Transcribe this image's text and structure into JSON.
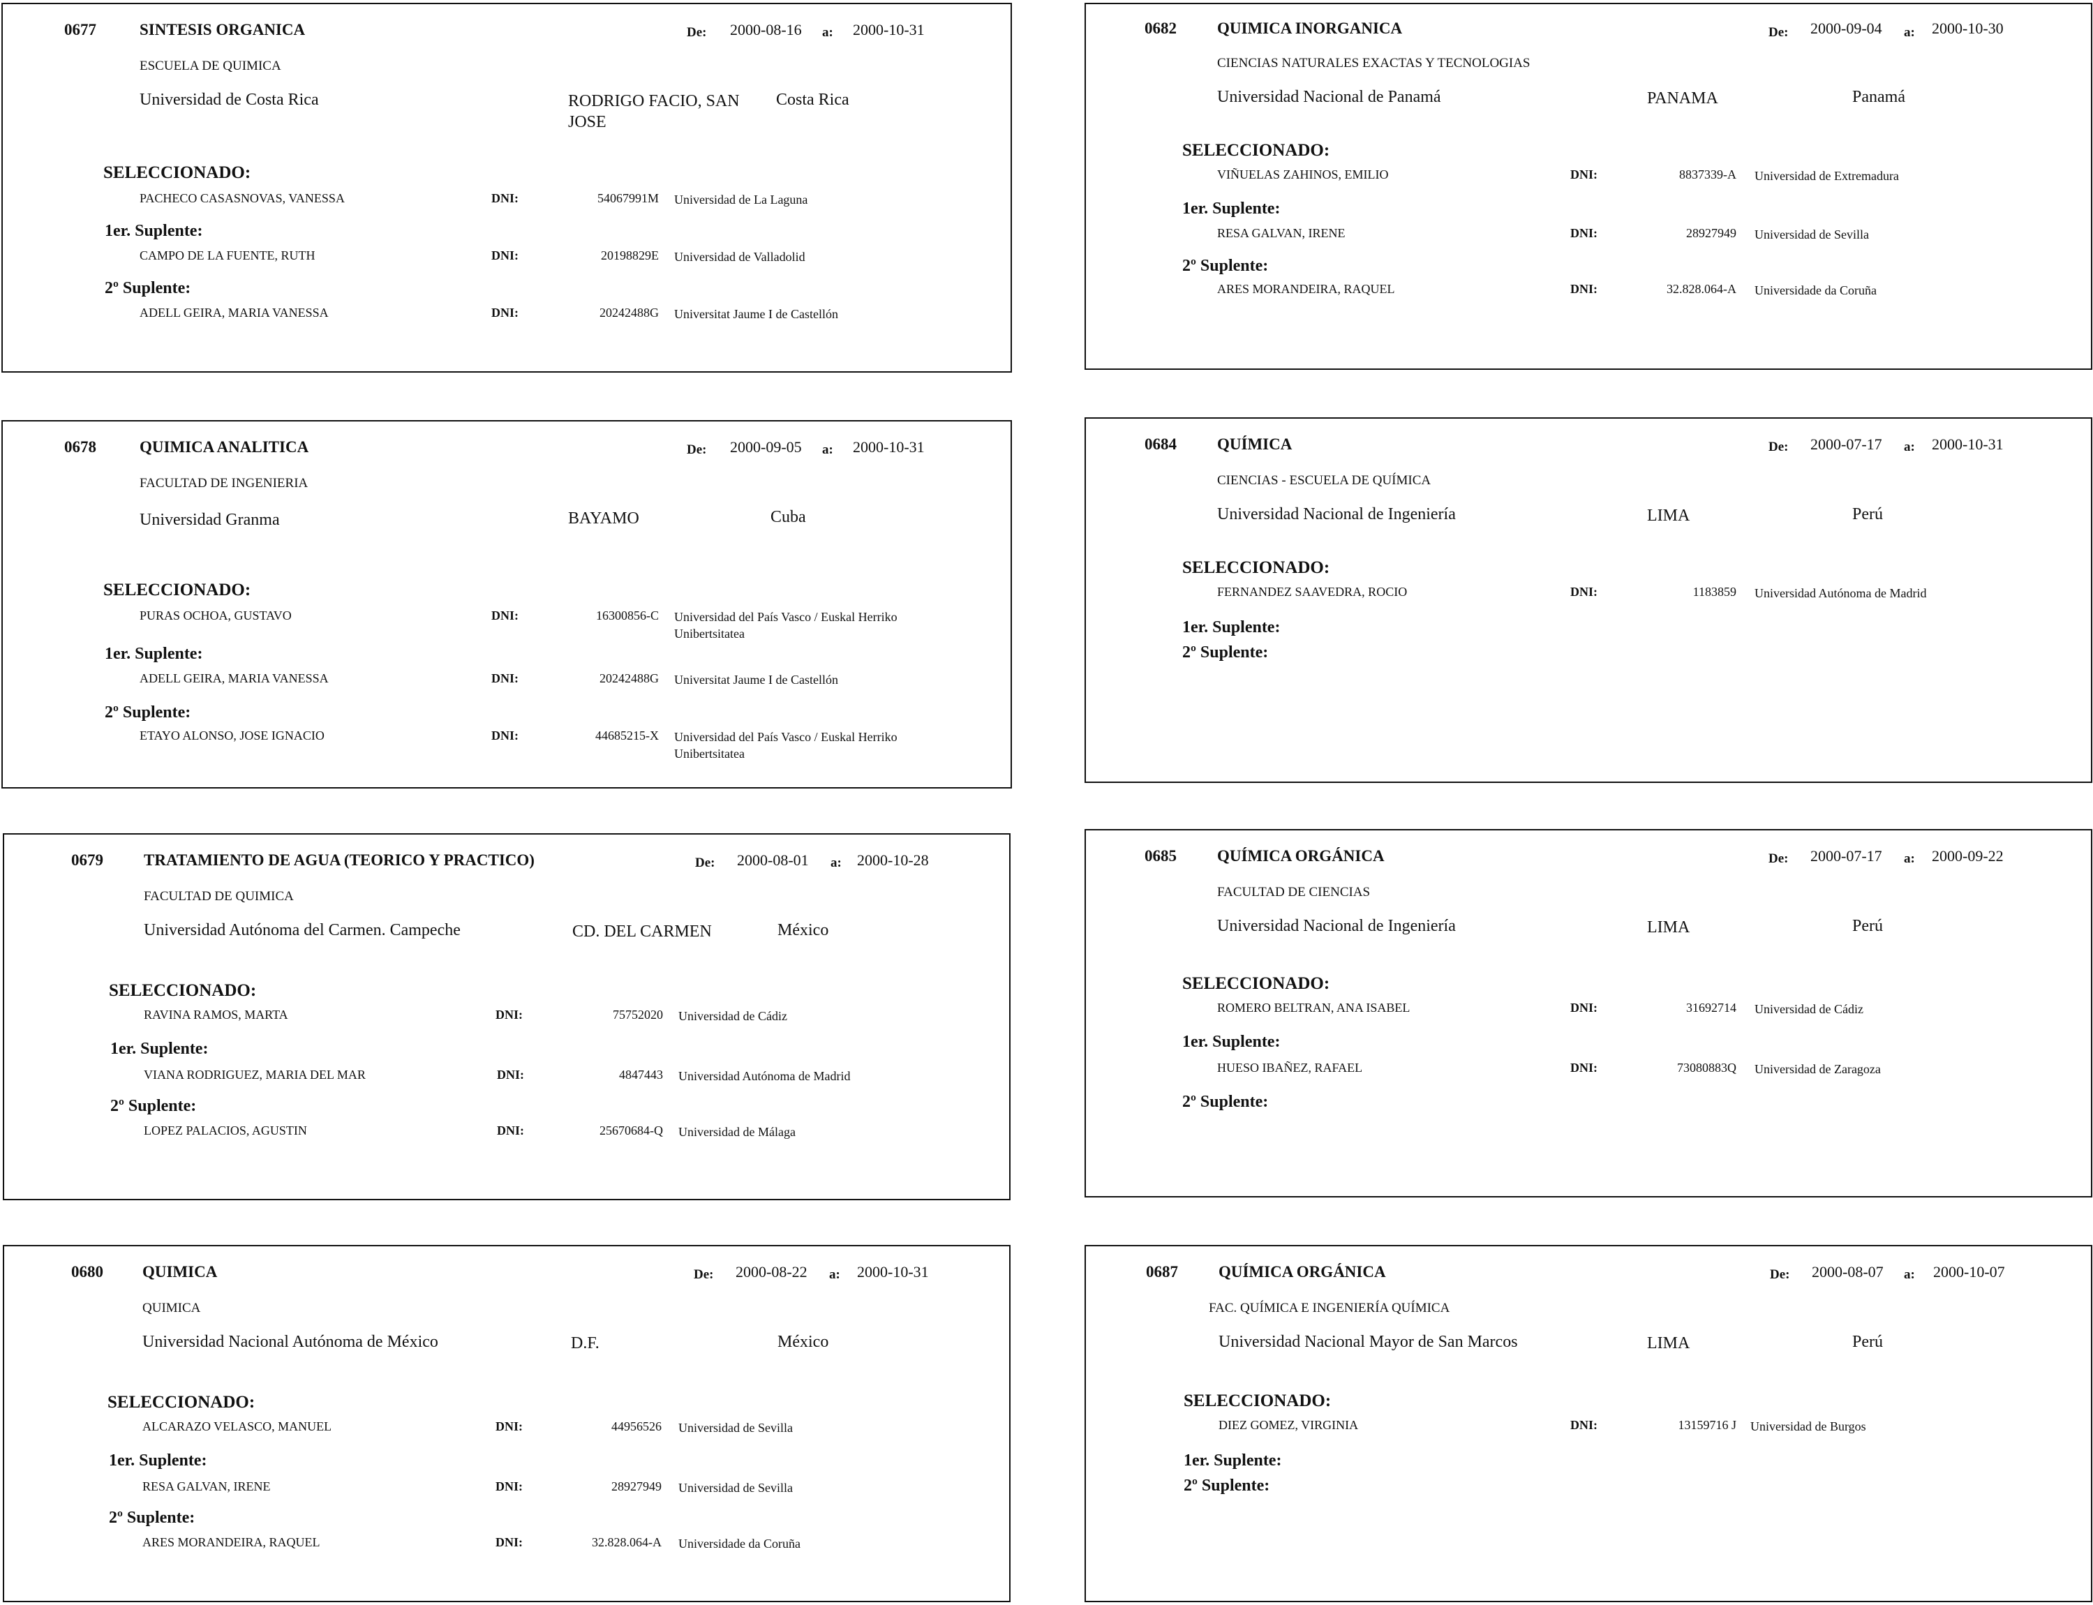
{
  "labels": {
    "de": "De:",
    "a": "a:",
    "selected": "SELECCIONADO:",
    "sub1": "1er. Suplente:",
    "sub2": "2º Suplente:",
    "dni": "DNI:"
  },
  "cards": [
    {
      "code": "0677",
      "title": "SINTESIS ORGANICA",
      "from": "2000-08-16",
      "to": "2000-10-31",
      "faculty": "ESCUELA DE QUIMICA",
      "university": "Universidad de Costa Rica",
      "city": "RODRIGO FACIO, SAN",
      "city2": "JOSE",
      "country": "Costa Rica",
      "selected": {
        "name": "PACHECO CASASNOVAS, VANESSA",
        "dni": "54067991M",
        "university": "Universidad de La Laguna"
      },
      "sub1": {
        "name": "CAMPO DE LA FUENTE, RUTH",
        "dni": "20198829E",
        "university": "Universidad de Valladolid"
      },
      "sub2": {
        "name": "ADELL GEIRA, MARIA VANESSA",
        "dni": "20242488G",
        "university": "Universitat Jaume I de Castellón"
      }
    },
    {
      "code": "0682",
      "title": "QUIMICA INORGANICA",
      "from": "2000-09-04",
      "to": "2000-10-30",
      "faculty": "CIENCIAS NATURALES EXACTAS Y TECNOLOGIAS",
      "university": "Universidad Nacional de Panamá",
      "city": "PANAMA",
      "country": "Panamá",
      "selected": {
        "name": "VIÑUELAS ZAHINOS, EMILIO",
        "dni": "8837339-A",
        "university": "Universidad de Extremadura"
      },
      "sub1": {
        "name": "RESA GALVAN, IRENE",
        "dni": "28927949",
        "university": "Universidad de Sevilla"
      },
      "sub2": {
        "name": "ARES MORANDEIRA, RAQUEL",
        "dni": "32.828.064-A",
        "university": "Universidade da Coruña"
      }
    },
    {
      "code": "0678",
      "title": "QUIMICA ANALITICA",
      "from": "2000-09-05",
      "to": "2000-10-31",
      "faculty": "FACULTAD DE INGENIERIA",
      "university": "Universidad Granma",
      "city": "BAYAMO",
      "country": "Cuba",
      "selected": {
        "name": "PURAS OCHOA, GUSTAVO",
        "dni": "16300856-C",
        "university": "Universidad del País Vasco / Euskal Herriko",
        "university2": "Unibertsitatea"
      },
      "sub1": {
        "name": "ADELL GEIRA, MARIA VANESSA",
        "dni": "20242488G",
        "university": "Universitat Jaume I de Castellón"
      },
      "sub2": {
        "name": "ETAYO ALONSO, JOSE IGNACIO",
        "dni": "44685215-X",
        "university": "Universidad del País Vasco / Euskal Herriko",
        "university2": "Unibertsitatea"
      }
    },
    {
      "code": "0684",
      "title": "QUÍMICA",
      "from": "2000-07-17",
      "to": "2000-10-31",
      "faculty": "CIENCIAS - ESCUELA DE QUÍMICA",
      "university": "Universidad Nacional de Ingeniería",
      "city": "LIMA",
      "country": "Perú",
      "selected": {
        "name": "FERNANDEZ  SAAVEDRA, ROCIO",
        "dni": "1183859",
        "university": "Universidad Autónoma de Madrid"
      }
    },
    {
      "code": "0679",
      "title": "TRATAMIENTO DE AGUA (TEORICO Y PRACTICO)",
      "from": "2000-08-01",
      "to": "2000-10-28",
      "faculty": "FACULTAD DE QUIMICA",
      "university": "Universidad Autónoma del Carmen. Campeche",
      "city": "CD. DEL CARMEN",
      "country": "México",
      "selected": {
        "name": "RAVINA RAMOS, MARTA",
        "dni": "75752020",
        "university": "Universidad de Cádiz"
      },
      "sub1": {
        "name": "VIANA RODRIGUEZ, MARIA DEL MAR",
        "dni": "4847443",
        "university": "Universidad Autónoma de Madrid"
      },
      "sub2": {
        "name": "LOPEZ PALACIOS, AGUSTIN",
        "dni": "25670684-Q",
        "university": "Universidad de Málaga"
      }
    },
    {
      "code": "0685",
      "title": "QUÍMICA ORGÁNICA",
      "from": "2000-07-17",
      "to": "2000-09-22",
      "faculty": "FACULTAD DE CIENCIAS",
      "university": "Universidad Nacional de Ingeniería",
      "city": "LIMA",
      "country": "Perú",
      "selected": {
        "name": "ROMERO BELTRAN, ANA ISABEL",
        "dni": "31692714",
        "university": "Universidad de Cádiz"
      },
      "sub1": {
        "name": "HUESO IBAÑEZ, RAFAEL",
        "dni": "73080883Q",
        "university": "Universidad de Zaragoza"
      }
    },
    {
      "code": "0680",
      "title": "QUIMICA",
      "from": "2000-08-22",
      "to": "2000-10-31",
      "faculty": "QUIMICA",
      "university": "Universidad Nacional Autónoma de México",
      "city": "D.F.",
      "country": "México",
      "selected": {
        "name": "ALCARAZO VELASCO, MANUEL",
        "dni": "44956526",
        "university": "Universidad de Sevilla"
      },
      "sub1": {
        "name": "RESA GALVAN, IRENE",
        "dni": "28927949",
        "university": "Universidad de Sevilla"
      },
      "sub2": {
        "name": "ARES MORANDEIRA, RAQUEL",
        "dni": "32.828.064-A",
        "university": "Universidade da Coruña"
      }
    },
    {
      "code": "0687",
      "title": "QUÍMICA ORGÁNICA",
      "from": "2000-08-07",
      "to": "2000-10-07",
      "faculty": "FAC. QUÍMICA E INGENIERÍA QUÍMICA",
      "university": "Universidad Nacional Mayor de San Marcos",
      "city": "LIMA",
      "country": "Perú",
      "selected": {
        "name": "DIEZ GOMEZ, VIRGINIA",
        "dni": "13159716 J",
        "university": "Universidad de Burgos"
      }
    }
  ]
}
